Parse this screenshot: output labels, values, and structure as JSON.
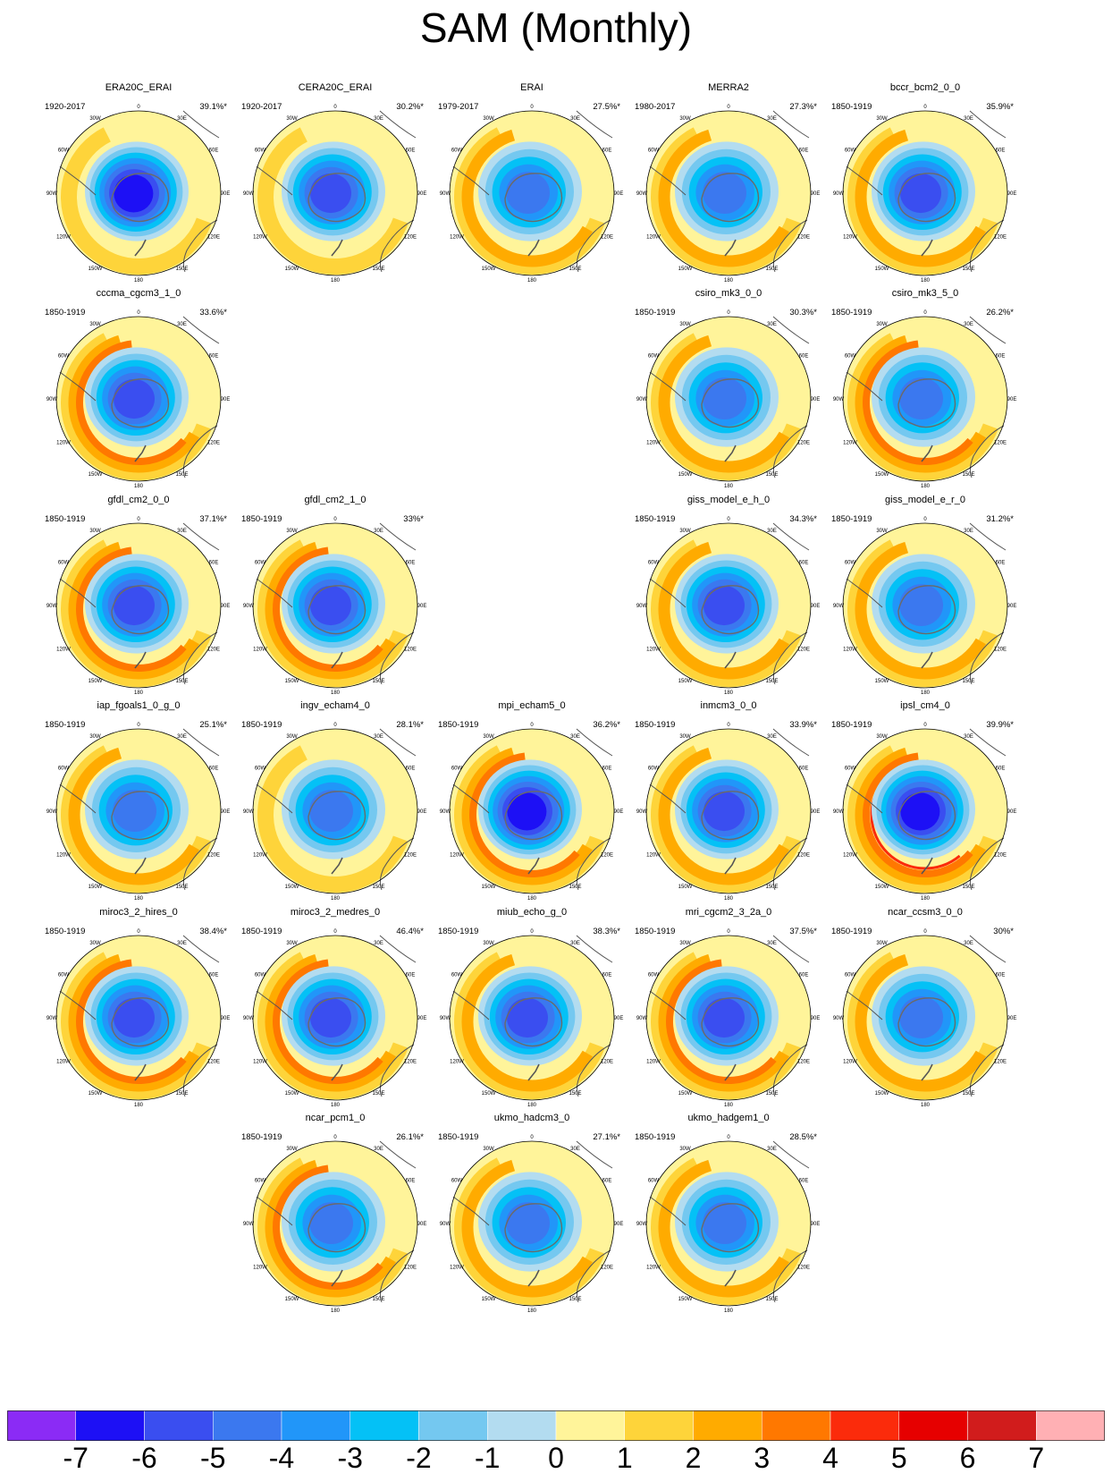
{
  "title": "SAM (Monthly)",
  "chart_data": {
    "type": "polar-contour-map-grid",
    "projection": "south-polar-stereographic",
    "longitude_labels": [
      "0",
      "30E",
      "60E",
      "90E",
      "120E",
      "150E",
      "180",
      "150W",
      "120W",
      "90W",
      "60W",
      "30W"
    ],
    "colorbar": {
      "tick_labels": [
        "-7",
        "-6",
        "-5",
        "-4",
        "-3",
        "-2",
        "-1",
        "0",
        "1",
        "2",
        "3",
        "4",
        "5",
        "6",
        "7"
      ],
      "levels": [
        -7,
        -6,
        -5,
        -4,
        -3,
        -2,
        -1,
        0,
        1,
        2,
        3,
        4,
        5,
        6,
        7
      ],
      "colors": [
        "#8b2bf5",
        "#1d10f5",
        "#3a4ef0",
        "#3b78ef",
        "#2196f9",
        "#04c1f6",
        "#74c8f0",
        "#b3dcf0",
        "#fff49a",
        "#fed43a",
        "#ffab00",
        "#ff7800",
        "#fb2b0b",
        "#e60000",
        "#d11c1c",
        "#ffb0b4"
      ]
    },
    "panels": [
      {
        "name": "ERA20C_ERAI",
        "period": "1920-2017",
        "variance": "39.1%*",
        "row": 0,
        "col": 0,
        "core_min": -6.5,
        "ring_max": 1.5
      },
      {
        "name": "CERA20C_ERAI",
        "period": "1920-2017",
        "variance": "30.2%*",
        "row": 0,
        "col": 1,
        "core_min": -5.5,
        "ring_max": 1.5
      },
      {
        "name": "ERAI",
        "period": "1979-2017",
        "variance": "27.5%*",
        "row": 0,
        "col": 2,
        "core_min": -4.5,
        "ring_max": 2.5
      },
      {
        "name": "MERRA2",
        "period": "1980-2017",
        "variance": "27.3%*",
        "row": 0,
        "col": 3,
        "core_min": -4.5,
        "ring_max": 2.5
      },
      {
        "name": "bccr_bcm2_0_0",
        "period": "1850-1919",
        "variance": "35.9%*",
        "row": 0,
        "col": 4,
        "core_min": -5.5,
        "ring_max": 2.5
      },
      {
        "name": "cccma_cgcm3_1_0",
        "period": "1850-1919",
        "variance": "33.6%*",
        "row": 1,
        "col": 0,
        "core_min": -5.5,
        "ring_max": 3.5
      },
      {
        "name": "csiro_mk3_0_0",
        "period": "1850-1919",
        "variance": "30.3%*",
        "row": 1,
        "col": 3,
        "core_min": -4.5,
        "ring_max": 2.5
      },
      {
        "name": "csiro_mk3_5_0",
        "period": "1850-1919",
        "variance": "26.2%*",
        "row": 1,
        "col": 4,
        "core_min": -4.5,
        "ring_max": 3.5
      },
      {
        "name": "gfdl_cm2_0_0",
        "period": "1850-1919",
        "variance": "37.1%*",
        "row": 2,
        "col": 0,
        "core_min": -5.5,
        "ring_max": 3.5
      },
      {
        "name": "gfdl_cm2_1_0",
        "period": "1850-1919",
        "variance": "33%*",
        "row": 2,
        "col": 1,
        "core_min": -5.5,
        "ring_max": 3.5
      },
      {
        "name": "giss_model_e_h_0",
        "period": "1850-1919",
        "variance": "34.3%*",
        "row": 2,
        "col": 3,
        "core_min": -5.5,
        "ring_max": 2.5
      },
      {
        "name": "giss_model_e_r_0",
        "period": "1850-1919",
        "variance": "31.2%*",
        "row": 2,
        "col": 4,
        "core_min": -4.5,
        "ring_max": 2.5
      },
      {
        "name": "iap_fgoals1_0_g_0",
        "period": "1850-1919",
        "variance": "25.1%*",
        "row": 3,
        "col": 0,
        "core_min": -4.5,
        "ring_max": 2.5
      },
      {
        "name": "ingv_echam4_0",
        "period": "1850-1919",
        "variance": "28.1%*",
        "row": 3,
        "col": 1,
        "core_min": -4.5,
        "ring_max": 1.5
      },
      {
        "name": "mpi_echam5_0",
        "period": "1850-1919",
        "variance": "36.2%*",
        "row": 3,
        "col": 2,
        "core_min": -6.5,
        "ring_max": 3.5
      },
      {
        "name": "inmcm3_0_0",
        "period": "1850-1919",
        "variance": "33.9%*",
        "row": 3,
        "col": 3,
        "core_min": -5.5,
        "ring_max": 2.5
      },
      {
        "name": "ipsl_cm4_0",
        "period": "1850-1919",
        "variance": "39.9%*",
        "row": 3,
        "col": 4,
        "core_min": -6.5,
        "ring_max": 4.5
      },
      {
        "name": "miroc3_2_hires_0",
        "period": "1850-1919",
        "variance": "38.4%*",
        "row": 4,
        "col": 0,
        "core_min": -5.5,
        "ring_max": 3.5
      },
      {
        "name": "miroc3_2_medres_0",
        "period": "1850-1919",
        "variance": "46.4%*",
        "row": 4,
        "col": 1,
        "core_min": -5.5,
        "ring_max": 3.5
      },
      {
        "name": "miub_echo_g_0",
        "period": "1850-1919",
        "variance": "38.3%*",
        "row": 4,
        "col": 2,
        "core_min": -5.5,
        "ring_max": 2.5
      },
      {
        "name": "mri_cgcm2_3_2a_0",
        "period": "1850-1919",
        "variance": "37.5%*",
        "row": 4,
        "col": 3,
        "core_min": -5.5,
        "ring_max": 3.5
      },
      {
        "name": "ncar_ccsm3_0_0",
        "period": "1850-1919",
        "variance": "30%*",
        "row": 4,
        "col": 4,
        "core_min": -4.5,
        "ring_max": 2.5
      },
      {
        "name": "ncar_pcm1_0",
        "period": "1850-1919",
        "variance": "26.1%*",
        "row": 5,
        "col": 1,
        "core_min": -4.5,
        "ring_max": 3.5
      },
      {
        "name": "ukmo_hadcm3_0",
        "period": "1850-1919",
        "variance": "27.1%*",
        "row": 5,
        "col": 2,
        "core_min": -4.5,
        "ring_max": 2.5
      },
      {
        "name": "ukmo_hadgem1_0",
        "period": "1850-1919",
        "variance": "28.5%*",
        "row": 5,
        "col": 3,
        "core_min": -4.5,
        "ring_max": 2.5
      }
    ]
  }
}
